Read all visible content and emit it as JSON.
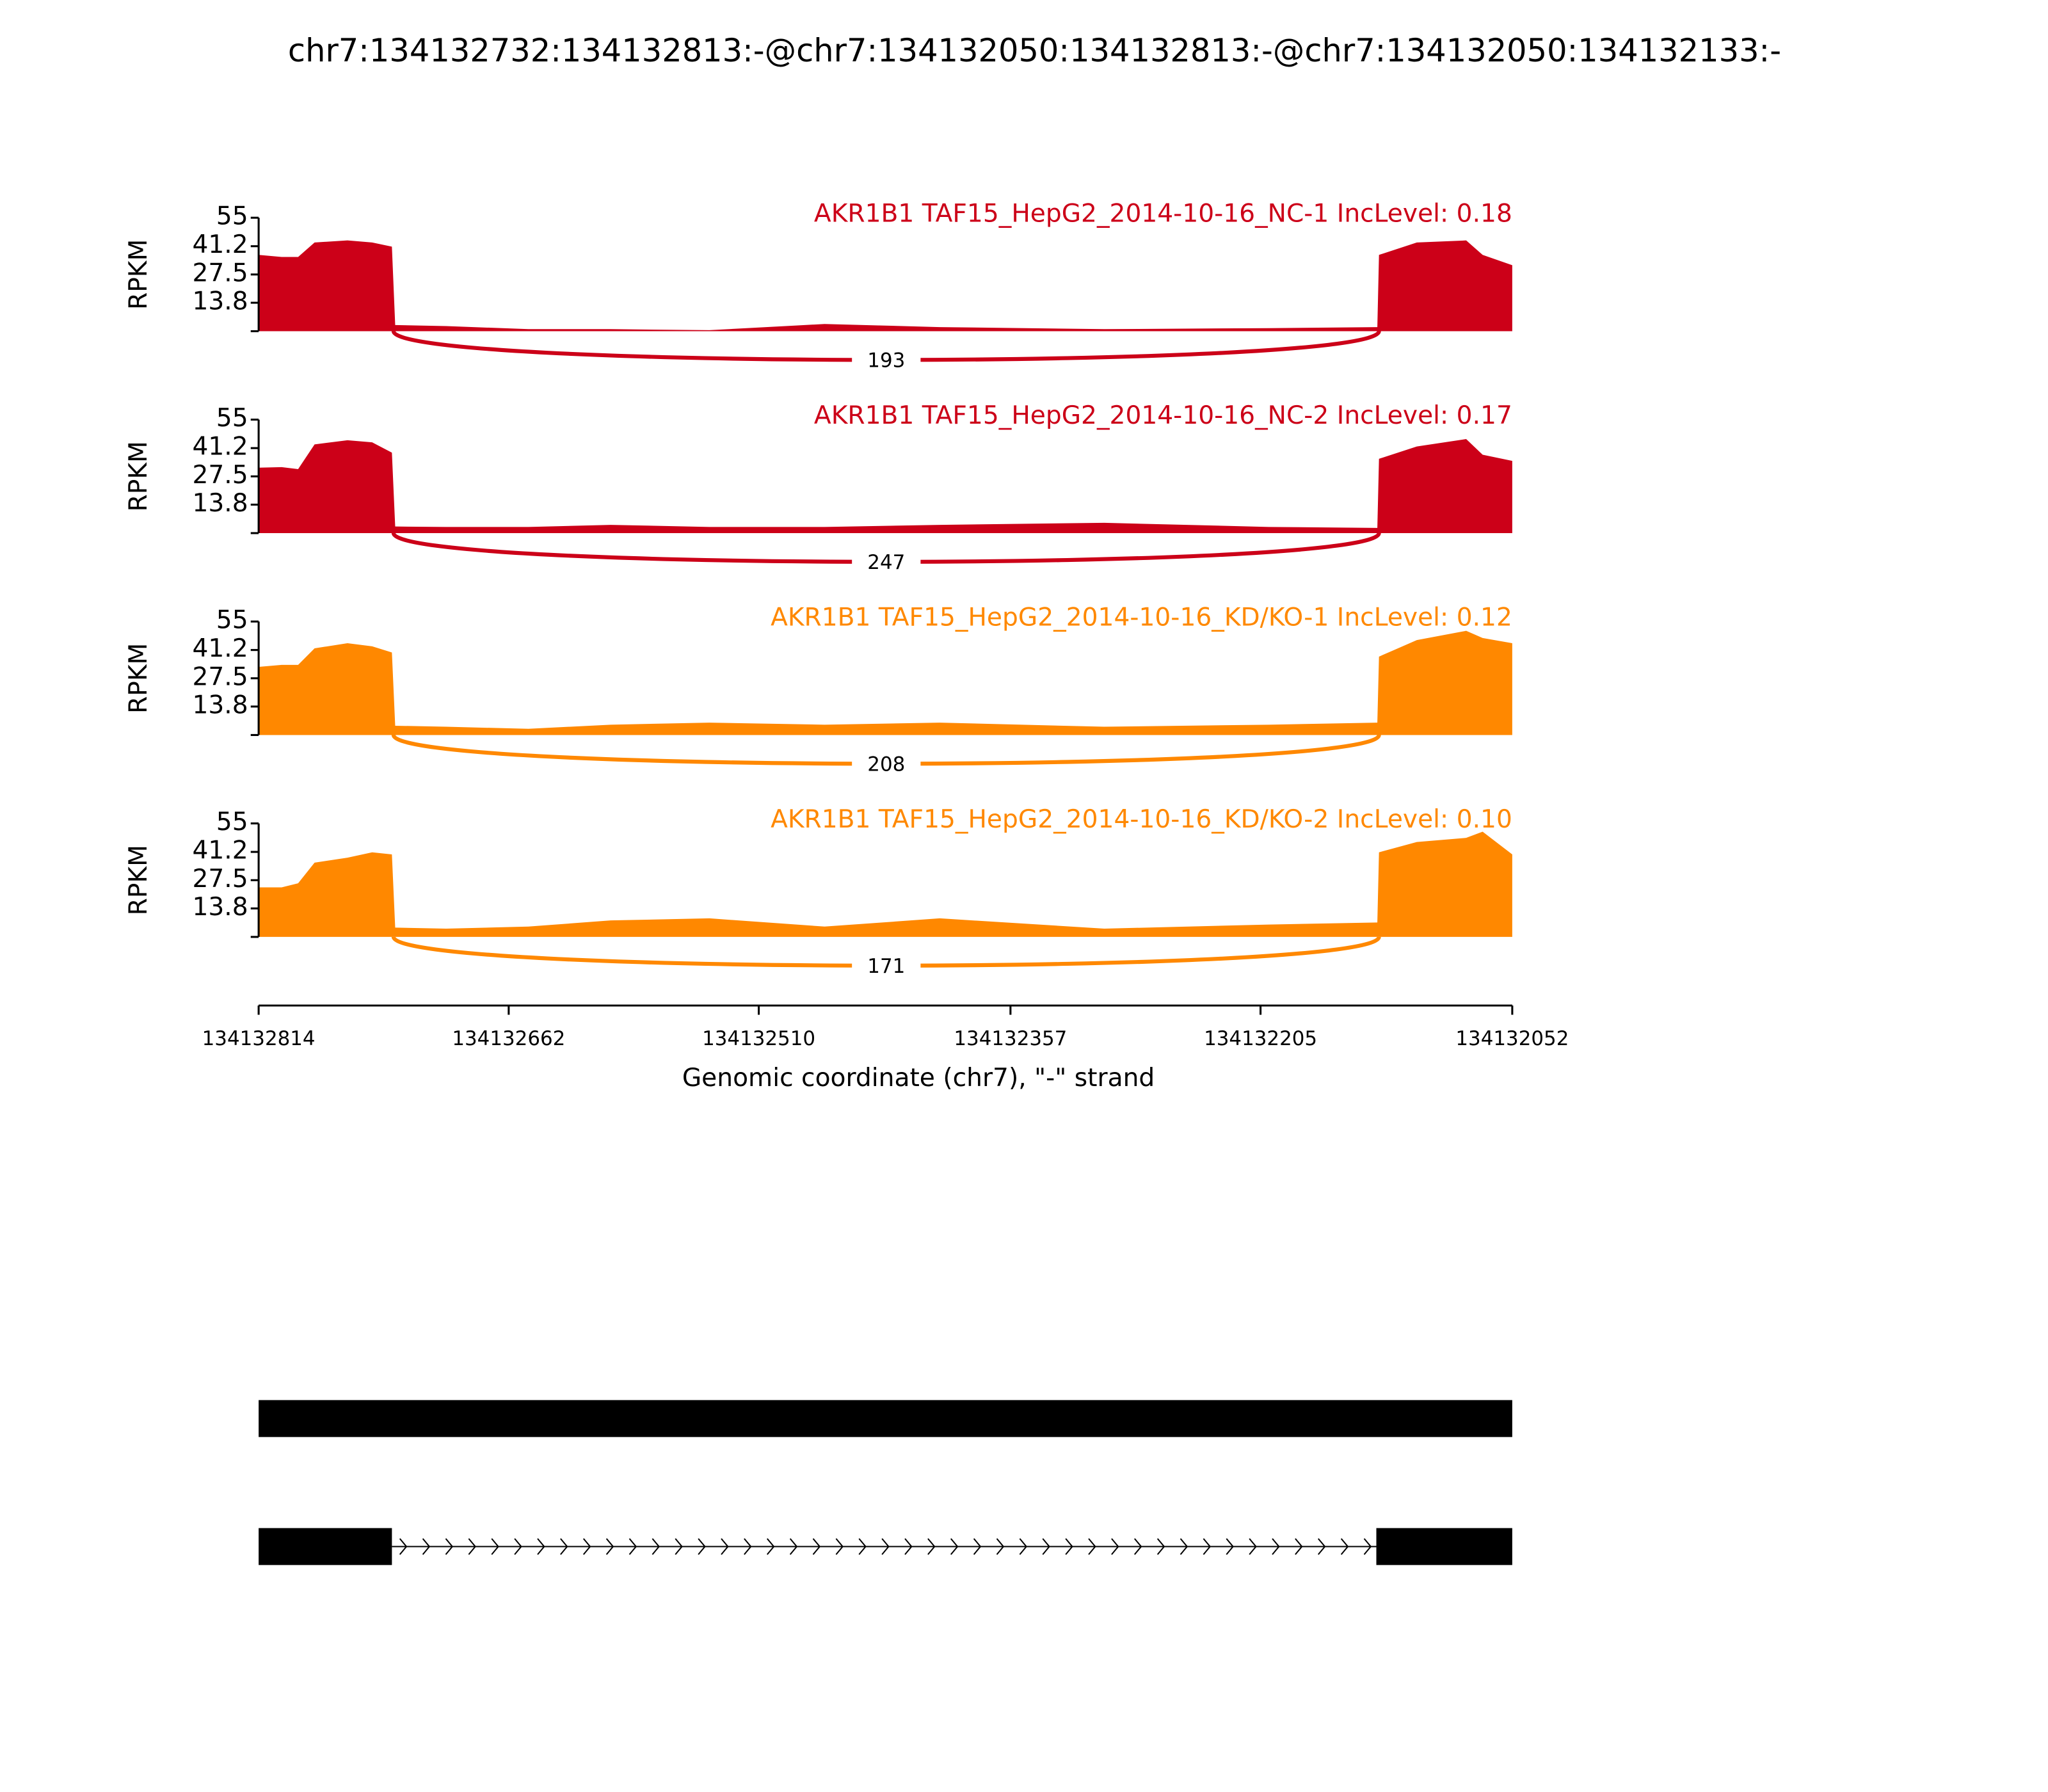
{
  "title": "chr7:134132732:134132813:-@chr7:134132050:134132813:-@chr7:134132050:134132133:-",
  "chart_data": [
    {
      "type": "sashimi",
      "label": "AKR1B1 TAF15_HepG2_2014-10-16_NC-1 IncLevel: 0.18",
      "ylabel": "RPKM",
      "color": "#cc0018",
      "xlim": [
        134132814,
        134132052
      ],
      "ylim": [
        0,
        55
      ],
      "yticks": [
        13.8,
        27.5,
        41.2,
        55
      ],
      "x": [
        134132814,
        134132800,
        134132790,
        134132780,
        134132760,
        134132745,
        134132733,
        134132731,
        134132700,
        134132650,
        134132600,
        134132540,
        134132470,
        134132400,
        134132300,
        134132200,
        134132134,
        134132133,
        134132110,
        134132080,
        134132070,
        134132052
      ],
      "values": [
        37,
        36,
        36,
        43,
        44,
        43,
        41,
        3,
        2.5,
        1,
        1,
        0.5,
        3.5,
        2,
        1,
        1.5,
        2,
        37,
        43,
        44,
        37,
        32
      ],
      "junctions": [
        {
          "start": 134132732,
          "end": 134132133,
          "value": 193
        }
      ]
    },
    {
      "type": "sashimi",
      "label": "AKR1B1 TAF15_HepG2_2014-10-16_NC-2 IncLevel: 0.17",
      "ylabel": "RPKM",
      "color": "#cc0018",
      "xlim": [
        134132814,
        134132052
      ],
      "ylim": [
        0,
        55
      ],
      "yticks": [
        13.8,
        27.5,
        41.2,
        55
      ],
      "x": [
        134132814,
        134132800,
        134132790,
        134132780,
        134132760,
        134132745,
        134132733,
        134132731,
        134132700,
        134132650,
        134132600,
        134132540,
        134132470,
        134132400,
        134132300,
        134132200,
        134132134,
        134132133,
        134132110,
        134132080,
        134132070,
        134132052
      ],
      "values": [
        31.7,
        32,
        31,
        43,
        45,
        44,
        39,
        3.2,
        3,
        3,
        4,
        3,
        3,
        4,
        5,
        3,
        2.5,
        36,
        42,
        45.6,
        38,
        35
      ],
      "junctions": [
        {
          "start": 134132732,
          "end": 134132133,
          "value": 247
        }
      ]
    },
    {
      "type": "sashimi",
      "label": "AKR1B1 TAF15_HepG2_2014-10-16_KD/KO-1 IncLevel: 0.12",
      "ylabel": "RPKM",
      "color": "#ff8800",
      "xlim": [
        134132814,
        134132052
      ],
      "ylim": [
        0,
        55
      ],
      "yticks": [
        13.8,
        27.5,
        41.2,
        55
      ],
      "x": [
        134132814,
        134132800,
        134132790,
        134132780,
        134132760,
        134132745,
        134132733,
        134132731,
        134132700,
        134132650,
        134132600,
        134132540,
        134132470,
        134132400,
        134132300,
        134132200,
        134132134,
        134132133,
        134132110,
        134132080,
        134132070,
        134132052
      ],
      "values": [
        33,
        34,
        34,
        42,
        44.5,
        43,
        40,
        4.5,
        4,
        3,
        5,
        6,
        5,
        6,
        4,
        5,
        6,
        38,
        46,
        50.5,
        47,
        44.5
      ],
      "junctions": [
        {
          "start": 134132732,
          "end": 134132133,
          "value": 208
        }
      ]
    },
    {
      "type": "sashimi",
      "label": "AKR1B1 TAF15_HepG2_2014-10-16_KD/KO-2 IncLevel: 0.10",
      "ylabel": "RPKM",
      "color": "#ff8800",
      "xlim": [
        134132814,
        134132052
      ],
      "ylim": [
        0,
        55
      ],
      "yticks": [
        13.8,
        27.5,
        41.2,
        55
      ],
      "x": [
        134132814,
        134132800,
        134132790,
        134132780,
        134132760,
        134132745,
        134132733,
        134132731,
        134132700,
        134132650,
        134132600,
        134132540,
        134132470,
        134132400,
        134132300,
        134132200,
        134132134,
        134132133,
        134132110,
        134132080,
        134132070,
        134132052
      ],
      "values": [
        24,
        24,
        26,
        36,
        38.4,
        41,
        40,
        4.5,
        4,
        5,
        8,
        9,
        5,
        9,
        4,
        6,
        7,
        41,
        46,
        48,
        51,
        40
      ],
      "junctions": [
        {
          "start": 134132732,
          "end": 134132133,
          "value": 171
        }
      ],
      "xticks": [
        134132814,
        134132662,
        134132510,
        134132357,
        134132205,
        134132052
      ],
      "xlabel": "Genomic coordinate (chr7), \"-\" strand"
    }
  ]
}
